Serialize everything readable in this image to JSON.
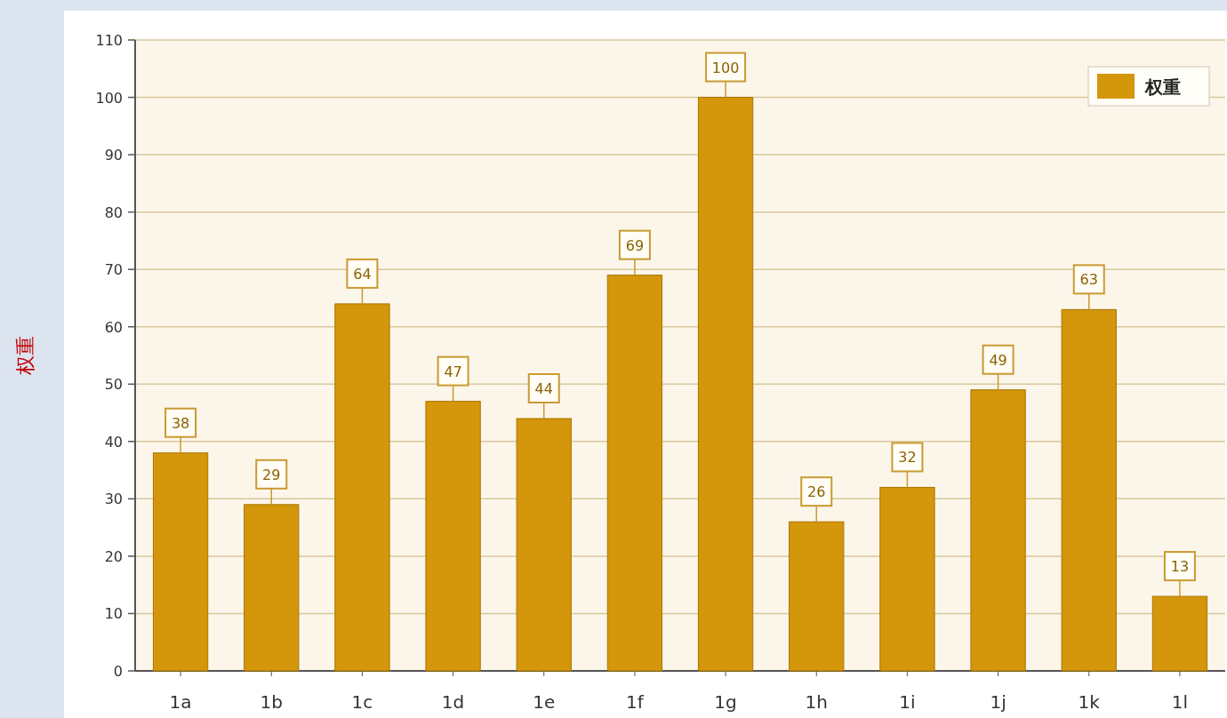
{
  "chart_data": {
    "type": "bar",
    "ylabel": "权重",
    "categories": [
      "1a",
      "1b",
      "1c",
      "1d",
      "1e",
      "1f",
      "1g",
      "1h",
      "1i",
      "1j",
      "1k",
      "1l"
    ],
    "series": [
      {
        "name": "权重",
        "color": "#d4960a",
        "values": [
          38,
          29,
          64,
          47,
          44,
          69,
          100,
          26,
          32,
          49,
          63,
          13
        ]
      }
    ],
    "ylim": [
      0,
      110
    ],
    "yticks": [
      0,
      10,
      20,
      30,
      40,
      50,
      60,
      70,
      80,
      90,
      100,
      110
    ],
    "grid": "y",
    "legend": "top right",
    "data_labels": true
  }
}
